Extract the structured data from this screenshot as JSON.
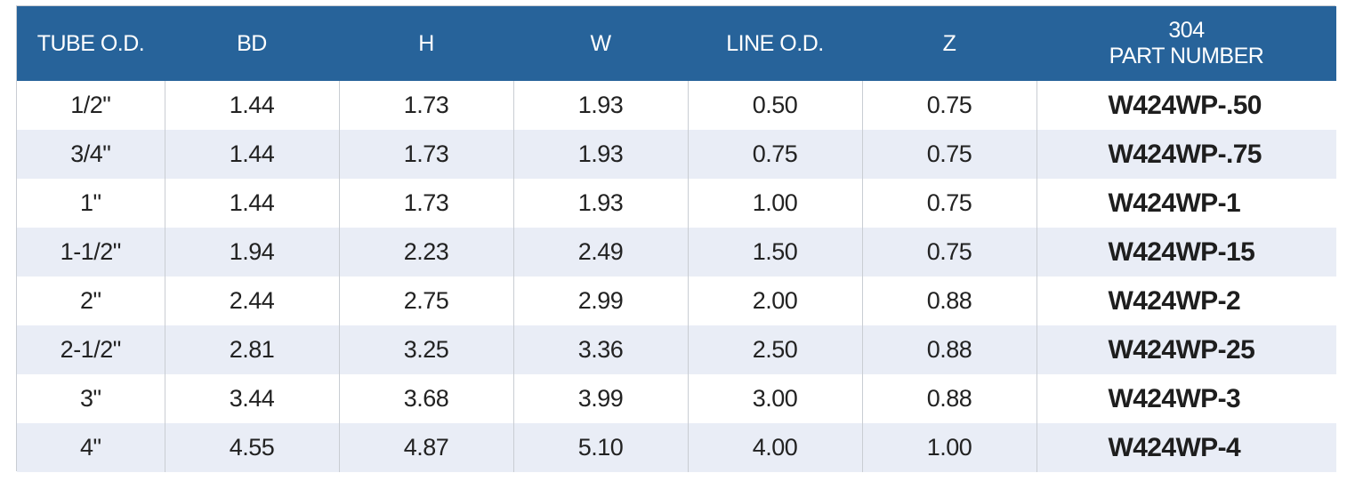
{
  "table": {
    "headers": [
      "TUBE O.D.",
      "BD",
      "H",
      "W",
      "LINE O.D.",
      "Z"
    ],
    "part_header": [
      "304",
      "PART NUMBER"
    ],
    "rows": [
      [
        "1/2\"",
        "1.44",
        "1.73",
        "1.93",
        "0.50",
        "0.75",
        "W424WP-.50"
      ],
      [
        "3/4\"",
        "1.44",
        "1.73",
        "1.93",
        "0.75",
        "0.75",
        "W424WP-.75"
      ],
      [
        "1\"",
        "1.44",
        "1.73",
        "1.93",
        "1.00",
        "0.75",
        "W424WP-1"
      ],
      [
        "1-1/2\"",
        "1.94",
        "2.23",
        "2.49",
        "1.50",
        "0.75",
        "W424WP-15"
      ],
      [
        "2\"",
        "2.44",
        "2.75",
        "2.99",
        "2.00",
        "0.88",
        "W424WP-2"
      ],
      [
        "2-1/2\"",
        "2.81",
        "3.25",
        "3.36",
        "2.50",
        "0.88",
        "W424WP-25"
      ],
      [
        "3\"",
        "3.44",
        "3.68",
        "3.99",
        "3.00",
        "0.88",
        "W424WP-3"
      ],
      [
        "4\"",
        "4.55",
        "4.87",
        "5.10",
        "4.00",
        "1.00",
        "W424WP-4"
      ]
    ]
  },
  "colors": {
    "header_bg": "#27639a",
    "header_text": "#ffffff",
    "row_alt_bg": "#e9edf6",
    "row_bg": "#ffffff",
    "grid_line": "#c9cdd3"
  }
}
